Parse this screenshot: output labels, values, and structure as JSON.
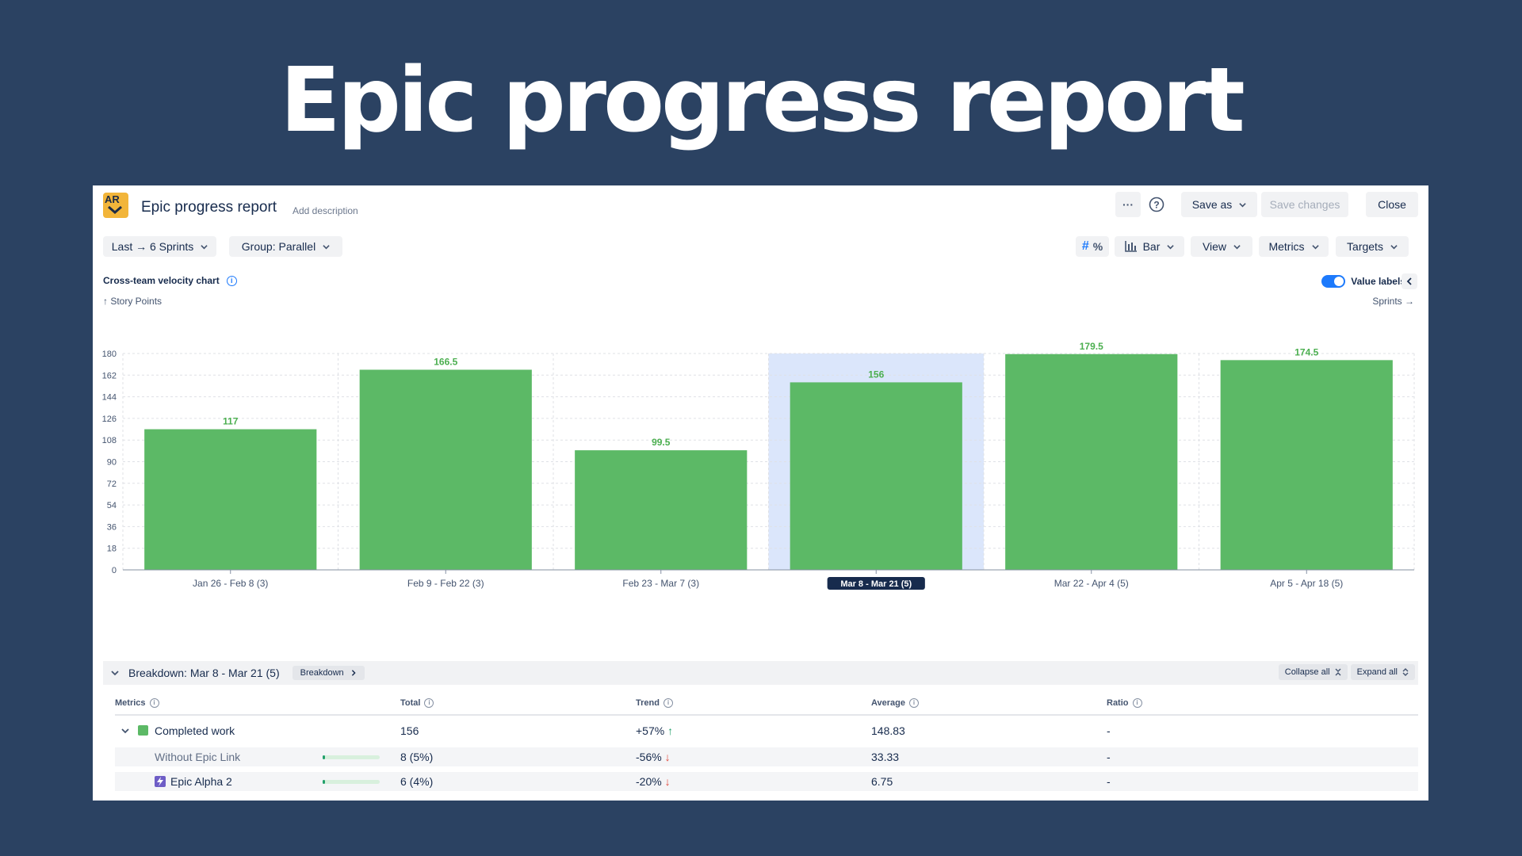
{
  "hero": {
    "title": "Epic progress report"
  },
  "header": {
    "logo_text": "AR",
    "title": "Epic progress report",
    "add_description": "Add description",
    "more": "···",
    "help": "?",
    "save_as": "Save as",
    "save_changes": "Save changes",
    "close": "Close"
  },
  "toolbar": {
    "range": "Last → 6 Sprints",
    "group": "Group: Parallel",
    "chart_type": "Bar",
    "view": "View",
    "metrics": "Metrics",
    "targets": "Targets"
  },
  "chart_header": {
    "title": "Cross-team velocity chart",
    "value_labels": "Value labels",
    "value_labels_on": true
  },
  "chart_data": {
    "type": "bar",
    "ylabel": "↑ Story Points",
    "xlabel": "Sprints →",
    "ylim": [
      0,
      180
    ],
    "yticks": [
      0,
      18,
      36,
      54,
      72,
      90,
      108,
      126,
      144,
      162,
      180
    ],
    "categories": [
      "Jan 26 - Feb 8 (3)",
      "Feb 9 - Feb 22 (3)",
      "Feb 23 - Mar 7 (3)",
      "Mar 8 - Mar 21 (5)",
      "Mar 22 - Apr 4 (5)",
      "Apr 5 - Apr 18 (5)"
    ],
    "values": [
      117,
      166.5,
      99.5,
      156,
      179.5,
      174.5
    ],
    "value_labels": [
      "117",
      "166.5",
      "99.5",
      "156",
      "179.5",
      "174.5"
    ],
    "selected_index": 3,
    "bar_color": "#5cb966",
    "selected_bg": "#dbe6fb",
    "label_color": "#4caf50",
    "grid": true
  },
  "breakdown": {
    "title": "Breakdown: Mar 8 - Mar 21 (5)",
    "button": "Breakdown",
    "collapse_all": "Collapse all",
    "expand_all": "Expand all",
    "columns": [
      "Metrics",
      "Total",
      "Trend",
      "Average",
      "Ratio"
    ],
    "rows": [
      {
        "name": "Completed work",
        "total": "156",
        "trend": "+57%",
        "trend_arrow": "↑",
        "average": "148.83",
        "ratio": "-"
      },
      {
        "name": "Without Epic Link",
        "total": "8 (5%)",
        "trend": "-56%",
        "trend_arrow": "↓",
        "average": "33.33",
        "ratio": "-"
      },
      {
        "name": "Epic Alpha 2",
        "total": "6 (4%)",
        "trend": "-20%",
        "trend_arrow": "↓",
        "average": "6.75",
        "ratio": "-"
      }
    ]
  }
}
